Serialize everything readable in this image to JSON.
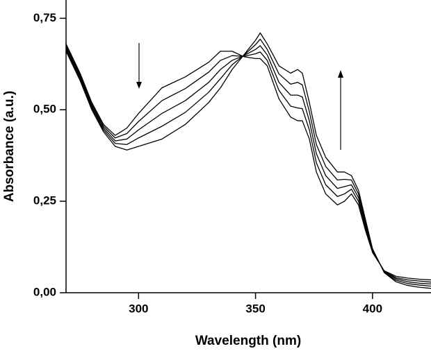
{
  "chart_data": {
    "type": "line",
    "x_label": "Wavelength (nm)",
    "y_label": "Absorbance (a.u.)",
    "x": [
      269,
      275,
      280,
      285,
      290,
      295,
      300,
      310,
      320,
      330,
      335,
      340,
      345,
      350,
      352,
      355,
      360,
      365,
      368,
      370,
      373,
      376,
      380,
      385,
      388,
      391,
      394,
      397,
      400,
      405,
      410,
      415,
      420,
      425
    ],
    "series": [
      {
        "color": "#000000",
        "values": [
          0.68,
          0.6,
          0.52,
          0.46,
          0.43,
          0.45,
          0.49,
          0.56,
          0.59,
          0.63,
          0.66,
          0.66,
          0.645,
          0.64,
          0.64,
          0.62,
          0.53,
          0.48,
          0.47,
          0.47,
          0.42,
          0.33,
          0.27,
          0.24,
          0.25,
          0.27,
          0.24,
          0.17,
          0.11,
          0.06,
          0.045,
          0.04,
          0.037,
          0.035
        ]
      },
      {
        "color": "#000000",
        "values": [
          0.675,
          0.595,
          0.515,
          0.455,
          0.423,
          0.435,
          0.468,
          0.525,
          0.558,
          0.603,
          0.635,
          0.648,
          0.646,
          0.653,
          0.658,
          0.635,
          0.553,
          0.51,
          0.505,
          0.503,
          0.445,
          0.355,
          0.295,
          0.263,
          0.27,
          0.283,
          0.25,
          0.178,
          0.113,
          0.059,
          0.041,
          0.035,
          0.032,
          0.029
        ]
      },
      {
        "color": "#000000",
        "values": [
          0.67,
          0.59,
          0.51,
          0.45,
          0.415,
          0.42,
          0.445,
          0.49,
          0.525,
          0.575,
          0.61,
          0.635,
          0.648,
          0.665,
          0.675,
          0.65,
          0.575,
          0.54,
          0.54,
          0.535,
          0.47,
          0.38,
          0.32,
          0.285,
          0.29,
          0.295,
          0.26,
          0.185,
          0.115,
          0.058,
          0.038,
          0.03,
          0.026,
          0.024
        ]
      },
      {
        "color": "#000000",
        "values": [
          0.665,
          0.585,
          0.505,
          0.445,
          0.408,
          0.405,
          0.423,
          0.455,
          0.493,
          0.548,
          0.585,
          0.623,
          0.649,
          0.678,
          0.693,
          0.665,
          0.598,
          0.57,
          0.575,
          0.568,
          0.495,
          0.405,
          0.345,
          0.308,
          0.31,
          0.308,
          0.27,
          0.193,
          0.118,
          0.056,
          0.034,
          0.025,
          0.021,
          0.018
        ]
      },
      {
        "color": "#000000",
        "values": [
          0.66,
          0.58,
          0.5,
          0.44,
          0.4,
          0.39,
          0.4,
          0.42,
          0.46,
          0.52,
          0.56,
          0.61,
          0.65,
          0.69,
          0.71,
          0.68,
          0.62,
          0.6,
          0.61,
          0.6,
          0.52,
          0.43,
          0.37,
          0.33,
          0.33,
          0.32,
          0.28,
          0.2,
          0.12,
          0.055,
          0.03,
          0.02,
          0.015,
          0.012
        ]
      }
    ],
    "xlim": [
      269,
      425
    ],
    "xticks": [
      300,
      350,
      400
    ],
    "ylim": [
      0,
      0.8
    ],
    "yticks": [
      {
        "value": 0,
        "label": "0,00"
      },
      {
        "value": 0.25,
        "label": "0,25"
      },
      {
        "value": 0.5,
        "label": "0,50"
      },
      {
        "value": 0.75,
        "label": "0,75"
      }
    ],
    "grid": false
  }
}
